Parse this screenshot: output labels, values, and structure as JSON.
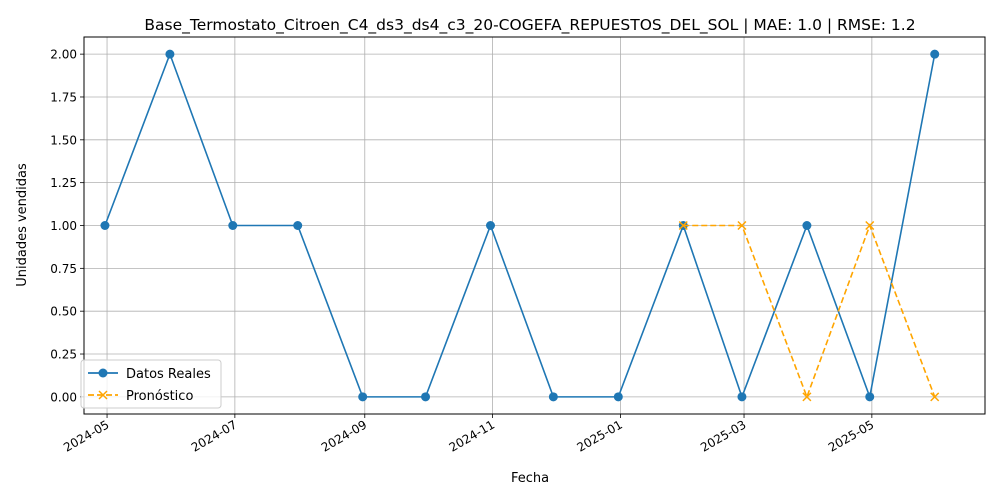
{
  "chart_data": {
    "type": "line",
    "title": "Base_Termostato_Citroen_C4_ds3_ds4_c3_20-COGEFA_REPUESTOS_DEL_SOL | MAE: 1.0 | RMSE: 1.2",
    "xlabel": "Fecha",
    "ylabel": "Unidades vendidas",
    "ylim": [
      -0.1,
      2.1
    ],
    "xlim": [
      "2024-04-20",
      "2025-06-24"
    ],
    "grid": true,
    "legend_position": "lower-left",
    "x_ticks": [
      "2024-05",
      "2024-07",
      "2024-09",
      "2024-11",
      "2025-01",
      "2025-03",
      "2025-05"
    ],
    "y_ticks": [
      "0.00",
      "0.25",
      "0.50",
      "0.75",
      "1.00",
      "1.25",
      "1.50",
      "1.75",
      "2.00"
    ],
    "series": [
      {
        "name": "Datos Reales",
        "color": "#1f77b4",
        "marker": "circle",
        "linestyle": "solid",
        "x": [
          "2024-04-30",
          "2024-05-31",
          "2024-06-30",
          "2024-07-31",
          "2024-08-31",
          "2024-09-30",
          "2024-10-31",
          "2024-11-30",
          "2024-12-31",
          "2025-01-31",
          "2025-02-28",
          "2025-03-31",
          "2025-04-30",
          "2025-05-31"
        ],
        "values": [
          1,
          2,
          1,
          1,
          0,
          0,
          1,
          0,
          0,
          1,
          0,
          1,
          0,
          2
        ]
      },
      {
        "name": "Pronóstico",
        "color": "#ffa500",
        "marker": "x",
        "linestyle": "dashed",
        "x": [
          "2025-01-31",
          "2025-02-28",
          "2025-03-31",
          "2025-04-30",
          "2025-05-31"
        ],
        "values": [
          1,
          1,
          0,
          1,
          0
        ]
      }
    ]
  }
}
